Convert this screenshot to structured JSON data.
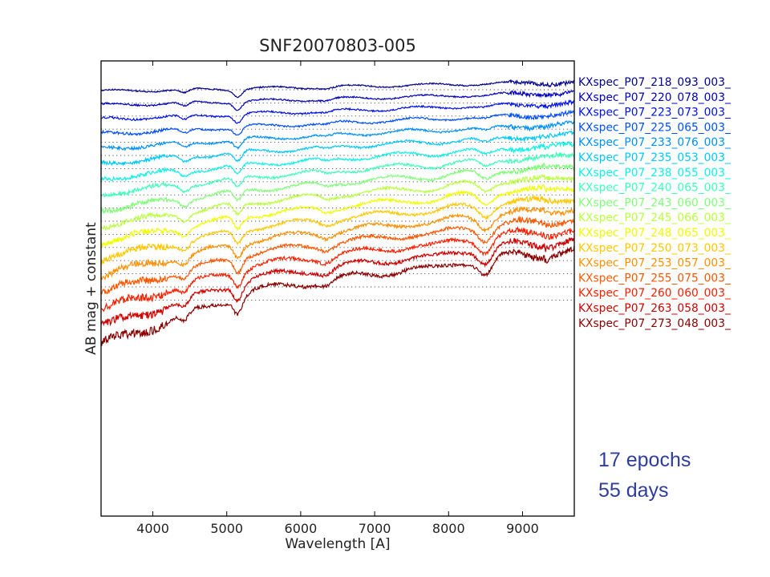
{
  "chart_data": {
    "type": "line",
    "title": "SNF20070803-005",
    "xlabel": "Wavelength [A]",
    "ylabel": "AB mag + constant",
    "xlim": [
      3300,
      9700
    ],
    "xticks": [
      4000,
      5000,
      6000,
      7000,
      8000,
      9000
    ],
    "y_units": "arbitrary offset",
    "grid": false,
    "legend": "right, outside plot",
    "series": [
      {
        "name": "KXspec_P07_218_093_003_",
        "color": "#00008f",
        "offset": 0,
        "reference_level": 0
      },
      {
        "name": "KXspec_P07_220_078_003_",
        "color": "#0000c0",
        "offset": 1,
        "reference_level": 1
      },
      {
        "name": "KXspec_P07_223_073_003_",
        "color": "#0010f0",
        "offset": 2,
        "reference_level": 2
      },
      {
        "name": "KXspec_P07_225_065_003_",
        "color": "#0050ff",
        "offset": 3,
        "reference_level": 3
      },
      {
        "name": "KXspec_P07_233_076_003_",
        "color": "#0090ff",
        "offset": 4,
        "reference_level": 4
      },
      {
        "name": "KXspec_P07_235_053_003_",
        "color": "#00c8ff",
        "offset": 5,
        "reference_level": 5
      },
      {
        "name": "KXspec_P07_238_055_003_",
        "color": "#10f0e8",
        "offset": 6,
        "reference_level": 6
      },
      {
        "name": "KXspec_P07_240_065_003_",
        "color": "#40ffb8",
        "offset": 7,
        "reference_level": 7
      },
      {
        "name": "KXspec_P07_243_060_003_",
        "color": "#80ff78",
        "offset": 8,
        "reference_level": 8
      },
      {
        "name": "KXspec_P07_245_066_003_",
        "color": "#b8ff40",
        "offset": 9,
        "reference_level": 9
      },
      {
        "name": "KXspec_P07_248_065_003_",
        "color": "#f0ff00",
        "offset": 10,
        "reference_level": 10
      },
      {
        "name": "KXspec_P07_250_073_003_",
        "color": "#ffc800",
        "offset": 11,
        "reference_level": 11
      },
      {
        "name": "KXspec_P07_253_057_003_",
        "color": "#ff9000",
        "offset": 12,
        "reference_level": 12
      },
      {
        "name": "KXspec_P07_255_075_003_",
        "color": "#ff5800",
        "offset": 13,
        "reference_level": 13
      },
      {
        "name": "KXspec_P07_260_060_003_",
        "color": "#ff2000",
        "offset": 14,
        "reference_level": 14
      },
      {
        "name": "KXspec_P07_263_058_003_",
        "color": "#d00000",
        "offset": 15,
        "reference_level": 15
      },
      {
        "name": "KXspec_P07_273_048_003_",
        "color": "#8a0000",
        "offset": 16,
        "reference_level": 16
      }
    ]
  },
  "annotations": {
    "epochs": "17 epochs",
    "days": "55 days"
  }
}
